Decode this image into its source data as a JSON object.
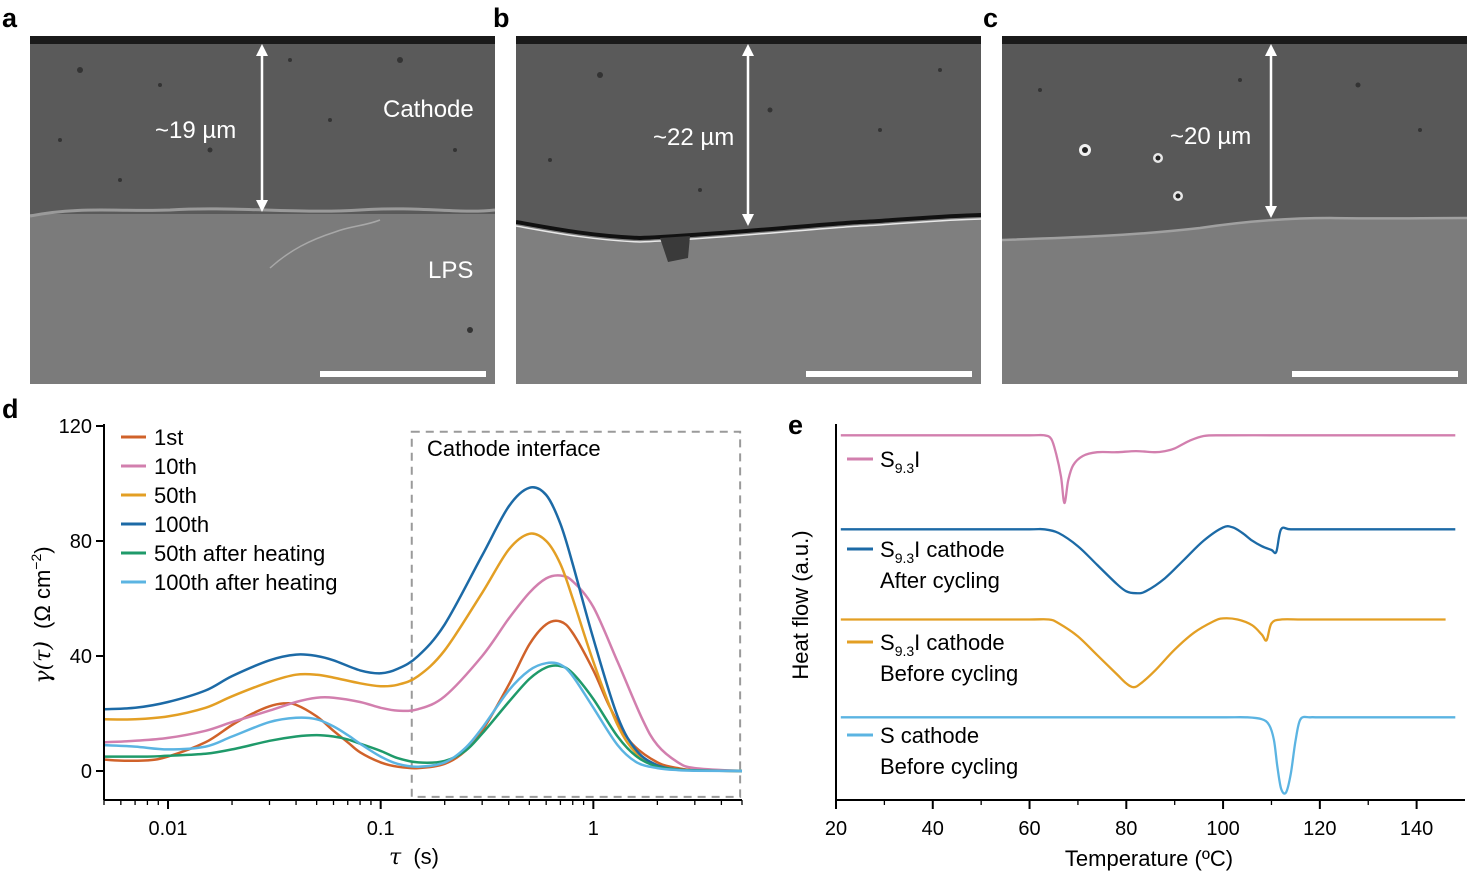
{
  "panels": {
    "a": {
      "letter": "a",
      "thickness_label": "~19 µm",
      "region_labels": [
        "Cathode",
        "LPS"
      ]
    },
    "b": {
      "letter": "b",
      "thickness_label": "~22 µm"
    },
    "c": {
      "letter": "c",
      "thickness_label": "~20 µm"
    },
    "d": {
      "letter": "d",
      "box_label": "Cathode interface"
    },
    "e": {
      "letter": "e"
    }
  },
  "colors": {
    "orange_red": "#d0622a",
    "pink": "#d27fae",
    "gold": "#e39f24",
    "blue": "#1c6aa6",
    "green": "#1f9a6a",
    "light_blue": "#5bb4e2",
    "sem_dark": "#555555",
    "sem_light": "#7e7e7e"
  },
  "chart_data": [
    {
      "type": "line",
      "panel": "d",
      "xlabel": "τ (s)",
      "xlabel_symbol": "τ",
      "xlabel_unit": "(s)",
      "ylabel": "γ(τ) (Ω cm⁻²)",
      "ylabel_parts": {
        "symbol": "γ(τ)",
        "unit_open": "(Ω cm",
        "unit_sup": "−2",
        "unit_close": ")"
      },
      "xscale": "log",
      "xlim": [
        0.005,
        5
      ],
      "ylim": [
        0,
        120
      ],
      "xticks": [
        0.01,
        0.1,
        1
      ],
      "xtick_labels": [
        "0.01",
        "0.1",
        "1"
      ],
      "yticks": [
        0,
        40,
        80,
        120
      ],
      "ytick_labels": [
        "0",
        "40",
        "80",
        "120"
      ],
      "legend_placement": "top-left",
      "annotation": {
        "text": "Cathode interface",
        "xrange": [
          0.14,
          4.9
        ],
        "yrange": [
          -9,
          118
        ]
      },
      "series": [
        {
          "name": "1st",
          "color": "#d0622a",
          "x": [
            0.005,
            0.006,
            0.008,
            0.01,
            0.015,
            0.02,
            0.025,
            0.03,
            0.035,
            0.04,
            0.05,
            0.06,
            0.07,
            0.08,
            0.1,
            0.12,
            0.15,
            0.2,
            0.25,
            0.3,
            0.4,
            0.5,
            0.6,
            0.7,
            0.8,
            1.0,
            1.2,
            1.5,
            2.0,
            2.5,
            3.0,
            5.0
          ],
          "y": [
            4,
            3.6,
            3.7,
            5,
            10,
            16,
            20,
            22.5,
            23.5,
            23,
            19,
            14,
            10,
            6.5,
            3,
            1.5,
            1,
            2.5,
            7,
            14,
            30,
            44,
            51,
            52,
            48,
            35,
            22,
            10,
            3,
            1,
            0.3,
            0
          ]
        },
        {
          "name": "10th",
          "color": "#d27fae",
          "x": [
            0.005,
            0.007,
            0.01,
            0.015,
            0.02,
            0.03,
            0.04,
            0.05,
            0.06,
            0.08,
            0.1,
            0.12,
            0.15,
            0.2,
            0.3,
            0.4,
            0.5,
            0.6,
            0.7,
            0.8,
            1.0,
            1.3,
            1.7,
            2.0,
            2.5,
            3.0,
            5.0
          ],
          "y": [
            10,
            10.5,
            11.5,
            14,
            17,
            21,
            24,
            25.5,
            25.5,
            24,
            22,
            21,
            21.5,
            26,
            40,
            53,
            62,
            67,
            68,
            66,
            57,
            38,
            18,
            9,
            3,
            1,
            0
          ]
        },
        {
          "name": "50th",
          "color": "#e39f24",
          "x": [
            0.005,
            0.007,
            0.01,
            0.015,
            0.02,
            0.03,
            0.04,
            0.05,
            0.06,
            0.08,
            0.1,
            0.12,
            0.15,
            0.2,
            0.3,
            0.4,
            0.5,
            0.6,
            0.7,
            0.8,
            1.0,
            1.3,
            1.6,
            2.0,
            2.5,
            3.0,
            5.0
          ],
          "y": [
            18,
            18,
            19,
            22,
            26,
            31,
            33.5,
            33.5,
            32.5,
            30.5,
            29.5,
            30,
            33,
            42,
            62,
            77,
            82.5,
            80,
            72,
            60,
            38,
            16,
            6,
            2,
            0.5,
            0.2,
            0
          ]
        },
        {
          "name": "100th",
          "color": "#1c6aa6",
          "x": [
            0.005,
            0.007,
            0.01,
            0.015,
            0.02,
            0.03,
            0.04,
            0.05,
            0.06,
            0.08,
            0.1,
            0.12,
            0.15,
            0.2,
            0.3,
            0.4,
            0.5,
            0.6,
            0.7,
            0.8,
            1.0,
            1.3,
            1.6,
            2.0,
            2.5,
            3.0,
            5.0
          ],
          "y": [
            21.5,
            22,
            24,
            28,
            33,
            38.5,
            40.5,
            40,
            38.5,
            35,
            34,
            35.5,
            40,
            51,
            75,
            92,
            98.5,
            96,
            86,
            72,
            46,
            19,
            7,
            2,
            0.5,
            0.2,
            0
          ]
        },
        {
          "name": "50th after heating",
          "color": "#1f9a6a",
          "x": [
            0.005,
            0.008,
            0.01,
            0.015,
            0.02,
            0.03,
            0.04,
            0.05,
            0.06,
            0.07,
            0.08,
            0.1,
            0.12,
            0.15,
            0.2,
            0.25,
            0.3,
            0.4,
            0.5,
            0.6,
            0.7,
            0.8,
            1.0,
            1.3,
            1.6,
            2.0,
            2.5,
            3.0,
            5.0
          ],
          "y": [
            5,
            5,
            5.3,
            6,
            7.5,
            10.5,
            12,
            12.5,
            12,
            11,
            9.5,
            7,
            4.5,
            3,
            3.5,
            7,
            13,
            24,
            32,
            36,
            36.5,
            34,
            25,
            12,
            5,
            1.5,
            0.5,
            0.2,
            0
          ]
        },
        {
          "name": "100th after heating",
          "color": "#5bb4e2",
          "x": [
            0.005,
            0.007,
            0.01,
            0.015,
            0.02,
            0.03,
            0.04,
            0.05,
            0.06,
            0.07,
            0.08,
            0.1,
            0.12,
            0.15,
            0.2,
            0.25,
            0.3,
            0.4,
            0.5,
            0.6,
            0.7,
            0.8,
            1.0,
            1.3,
            1.6,
            2.0,
            2.5,
            3.0,
            5.0
          ],
          "y": [
            9,
            8.5,
            7.5,
            8.5,
            12,
            17,
            18.5,
            18,
            15.5,
            12.5,
            9.5,
            5,
            2.5,
            1.5,
            3,
            8,
            15,
            28,
            35,
            37.5,
            37,
            33,
            22,
            9,
            3,
            1,
            0.3,
            0.1,
            0
          ]
        }
      ]
    },
    {
      "type": "line",
      "panel": "e",
      "xlabel": "Temperature (ºC)",
      "ylabel": "Heat flow (a.u.)",
      "xlim": [
        20,
        150
      ],
      "ylim": [
        0,
        100
      ],
      "xticks": [
        20,
        40,
        60,
        80,
        100,
        120,
        140
      ],
      "xtick_labels": [
        "20",
        "40",
        "60",
        "80",
        "100",
        "120",
        "140"
      ],
      "legend_placement": "inline-left",
      "series": [
        {
          "name": "S9.3I",
          "label_lines": [
            [
              "S",
              "9.3",
              "I"
            ]
          ],
          "color": "#d27fae",
          "x": [
            21,
            30,
            40,
            50,
            60,
            63,
            64.5,
            65.5,
            66.5,
            67.2,
            68,
            69,
            71,
            74,
            78,
            82,
            86,
            88,
            90,
            93,
            96,
            100,
            110,
            120,
            130,
            140,
            148
          ],
          "y": [
            97,
            97,
            97,
            97,
            97,
            97,
            96,
            92,
            86,
            79,
            85,
            89,
            91.5,
            92.5,
            92.5,
            92.8,
            92.5,
            92.8,
            93.5,
            95.5,
            96.8,
            97,
            97,
            97,
            97,
            97,
            97
          ]
        },
        {
          "name": "S9.3I cathode After cycling",
          "label_lines": [
            [
              "S",
              "9.3",
              "I cathode"
            ],
            [
              "After cycling"
            ]
          ],
          "color": "#1c6aa6",
          "x": [
            21,
            30,
            40,
            50,
            60,
            63,
            66,
            70,
            74,
            78,
            80,
            82,
            84,
            88,
            92,
            96,
            100,
            102,
            104,
            106,
            108,
            110,
            111,
            112,
            114,
            120,
            130,
            140,
            148
          ],
          "y": [
            72,
            72,
            72,
            72,
            72,
            72,
            71,
            67.5,
            62.5,
            57.5,
            55.5,
            55,
            55.5,
            59,
            64,
            69,
            72.5,
            72.5,
            71,
            69,
            67.5,
            66.5,
            66,
            72,
            72,
            72,
            72,
            72,
            72
          ]
        },
        {
          "name": "S9.3I cathode Before cycling",
          "label_lines": [
            [
              "S",
              "9.3",
              "I cathode"
            ],
            [
              "Before cycling"
            ]
          ],
          "color": "#e39f24",
          "x": [
            21,
            30,
            40,
            50,
            60,
            64,
            66,
            70,
            74,
            78,
            80,
            81.5,
            83,
            86,
            90,
            94,
            98,
            100,
            103,
            106,
            108,
            109,
            110,
            112,
            116,
            120,
            130,
            140,
            146
          ],
          "y": [
            48,
            48,
            48,
            48,
            48,
            48,
            47,
            43.5,
            38.5,
            33.5,
            31,
            30,
            31,
            34.5,
            40,
            44.5,
            47.5,
            48.3,
            48,
            46.5,
            44,
            42.5,
            47,
            48,
            48,
            48,
            48,
            48,
            48
          ]
        },
        {
          "name": "S cathode Before cycling",
          "label_lines": [
            [
              "S cathode"
            ],
            [
              "Before cycling"
            ]
          ],
          "color": "#5bb4e2",
          "x": [
            21,
            30,
            40,
            50,
            60,
            70,
            80,
            90,
            100,
            105,
            108,
            109.5,
            110.5,
            111.2,
            112,
            113,
            114,
            115,
            116,
            118,
            120,
            130,
            140,
            148
          ],
          "y": [
            22,
            22,
            22,
            22,
            22,
            22,
            22,
            22,
            22,
            22,
            21.5,
            20,
            16,
            9,
            3,
            2,
            7,
            16,
            21.5,
            22,
            22,
            22,
            22,
            22
          ]
        }
      ]
    }
  ]
}
